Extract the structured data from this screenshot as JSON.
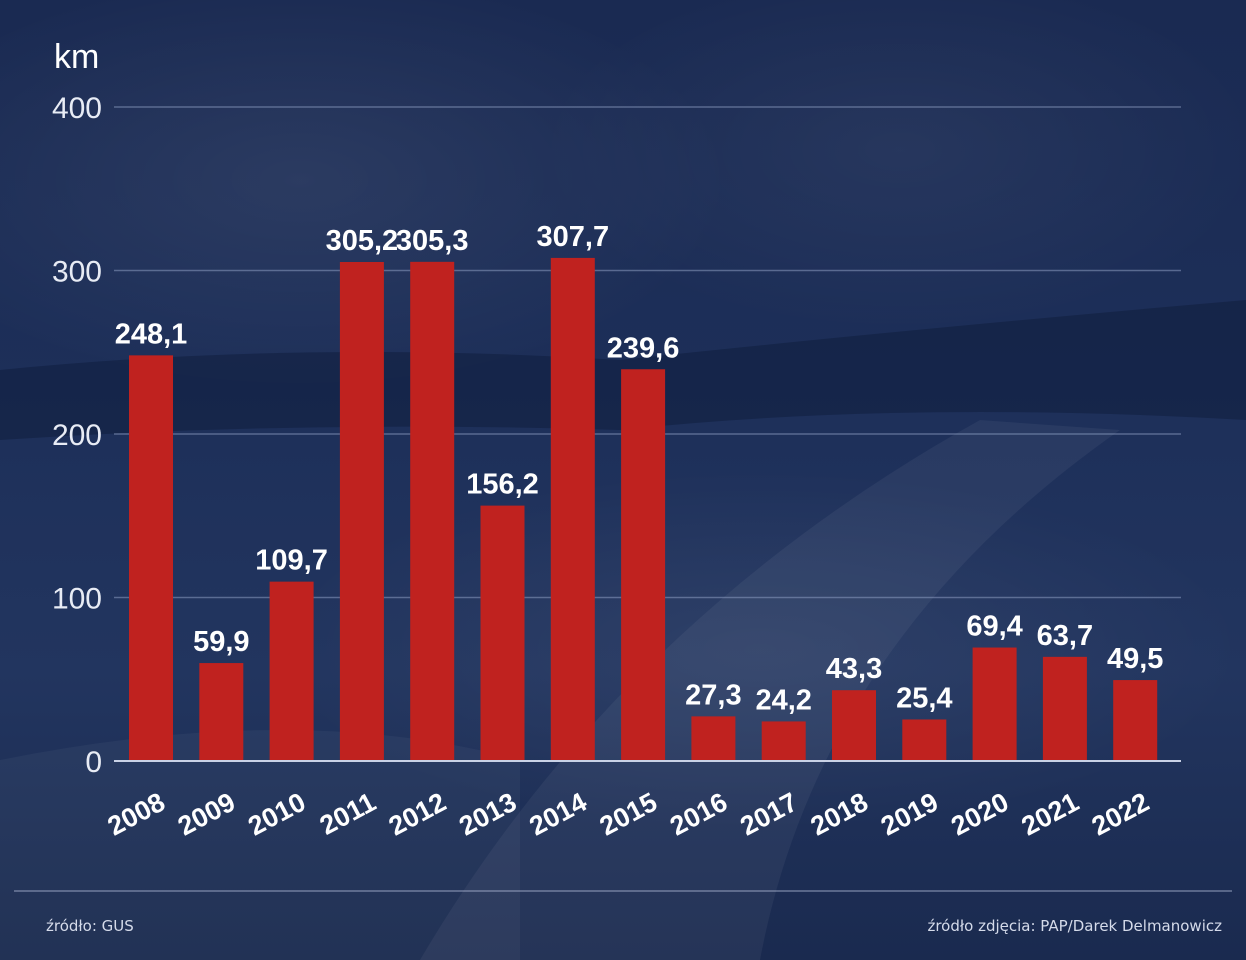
{
  "chart_data": {
    "type": "bar",
    "unit_label": "km",
    "categories": [
      "2008",
      "2009",
      "2010",
      "2011",
      "2012",
      "2013",
      "2014",
      "2015",
      "2016",
      "2017",
      "2018",
      "2019",
      "2020",
      "2021",
      "2022"
    ],
    "values": [
      248.1,
      59.9,
      109.7,
      305.2,
      305.3,
      156.2,
      307.7,
      239.6,
      27.3,
      24.2,
      43.3,
      25.4,
      69.4,
      63.7,
      49.5
    ],
    "value_labels": [
      "248,1",
      "59,9",
      "109,7",
      "305,2",
      "305,3",
      "156,2",
      "307,7",
      "239,6",
      "27,3",
      "24,2",
      "43,3",
      "25,4",
      "69,4",
      "63,7",
      "49,5"
    ],
    "y_ticks": [
      "0",
      "100",
      "200",
      "300",
      "400"
    ],
    "ylim": [
      0,
      400
    ],
    "grid": true,
    "bar_color": "#c0221f",
    "grid_color": "#8a9ac0",
    "text_color": "#ffffff"
  },
  "footer": {
    "source_left": "źródło: GUS",
    "source_right": "źródło zdjęcia: PAP/Darek Delmanowicz"
  }
}
